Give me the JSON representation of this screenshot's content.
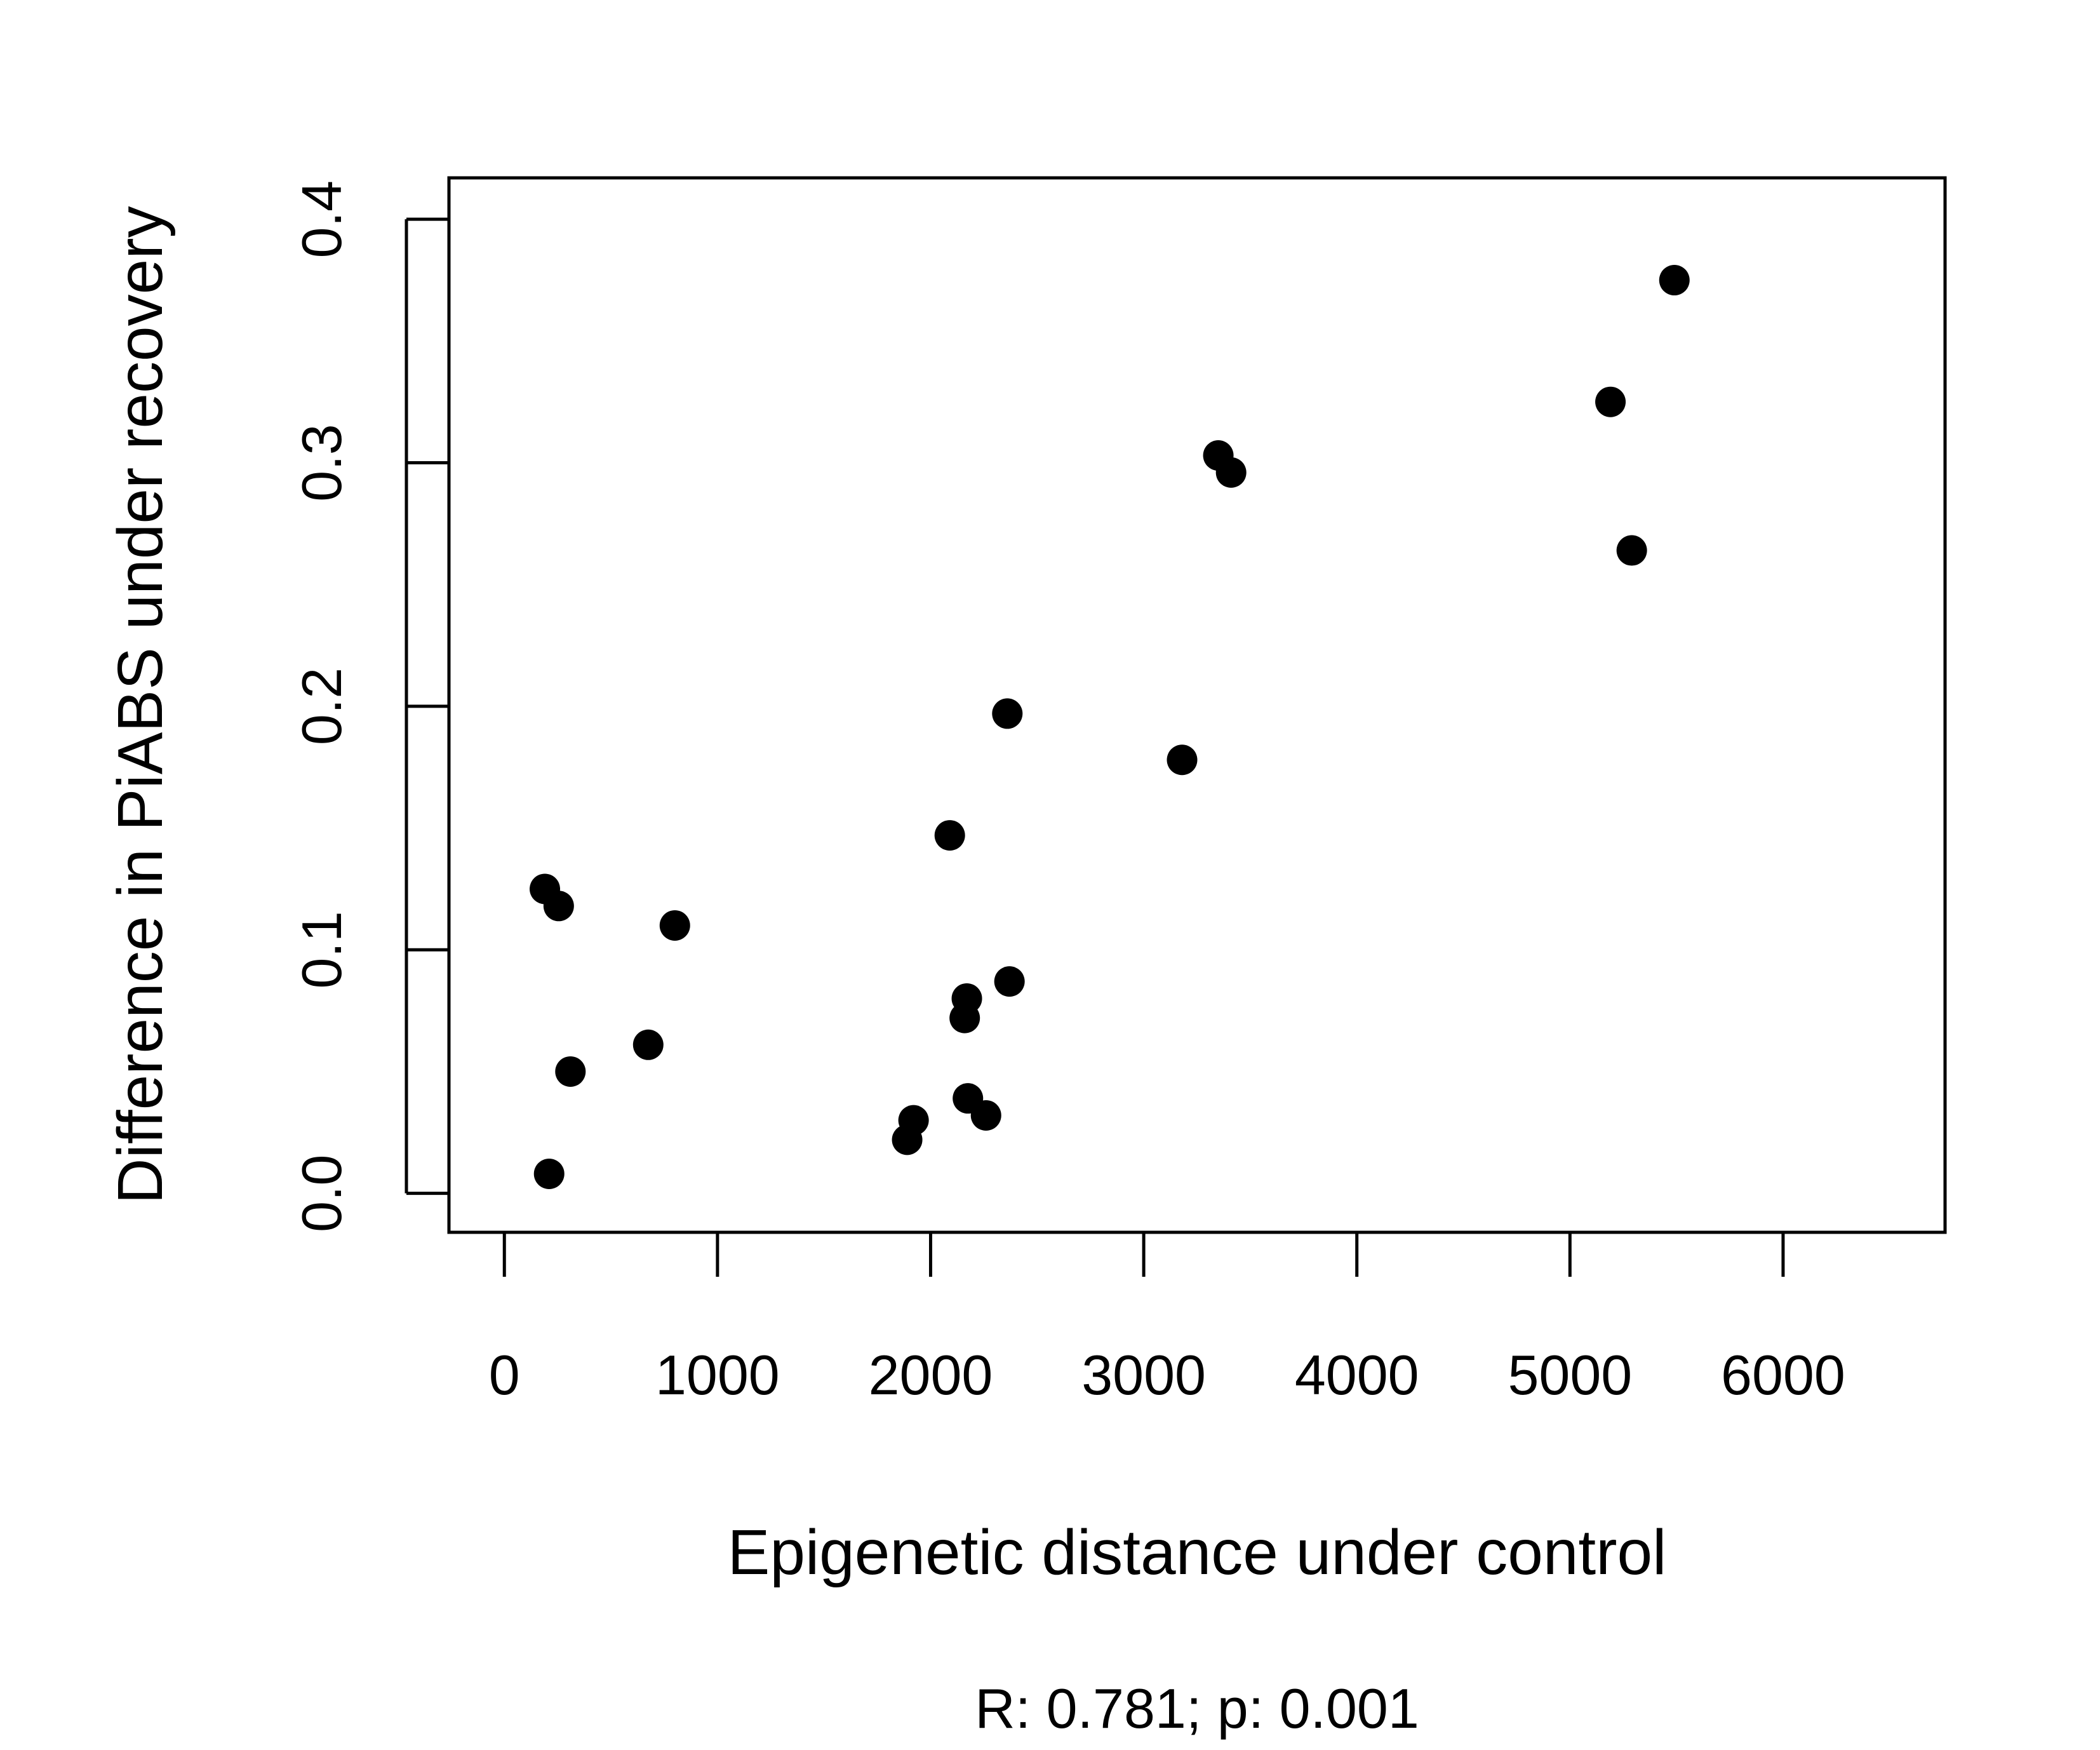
{
  "chart_data": {
    "type": "scatter",
    "xlabel": "Epigenetic distance under control",
    "ylabel": "Difference in PiABS under recovery",
    "annotation": "R: 0.781; p: 0.001",
    "xlim": [
      -260,
      6760
    ],
    "ylim": [
      -0.016,
      0.417
    ],
    "x_ticks": [
      0,
      1000,
      2000,
      3000,
      4000,
      5000,
      6000
    ],
    "x_tick_labels": [
      "0",
      "1000",
      "2000",
      "3000",
      "4000",
      "5000",
      "6000"
    ],
    "y_ticks": [
      0.0,
      0.1,
      0.2,
      0.3,
      0.4
    ],
    "y_tick_labels": [
      "0.0",
      "0.1",
      "0.2",
      "0.3",
      "0.4"
    ],
    "grid": false,
    "legend": "none",
    "point_color": "#000000",
    "points": [
      {
        "x": 190,
        "y": 0.125
      },
      {
        "x": 255,
        "y": 0.118
      },
      {
        "x": 210,
        "y": 0.008
      },
      {
        "x": 310,
        "y": 0.05
      },
      {
        "x": 675,
        "y": 0.061
      },
      {
        "x": 800,
        "y": 0.11
      },
      {
        "x": 1890,
        "y": 0.022
      },
      {
        "x": 1920,
        "y": 0.03
      },
      {
        "x": 2090,
        "y": 0.147
      },
      {
        "x": 2160,
        "y": 0.072
      },
      {
        "x": 2170,
        "y": 0.08
      },
      {
        "x": 2175,
        "y": 0.039
      },
      {
        "x": 2260,
        "y": 0.032
      },
      {
        "x": 2360,
        "y": 0.197
      },
      {
        "x": 2370,
        "y": 0.087
      },
      {
        "x": 3180,
        "y": 0.178
      },
      {
        "x": 3350,
        "y": 0.303
      },
      {
        "x": 3410,
        "y": 0.296
      },
      {
        "x": 5190,
        "y": 0.325
      },
      {
        "x": 5290,
        "y": 0.264
      },
      {
        "x": 5490,
        "y": 0.375
      }
    ]
  }
}
